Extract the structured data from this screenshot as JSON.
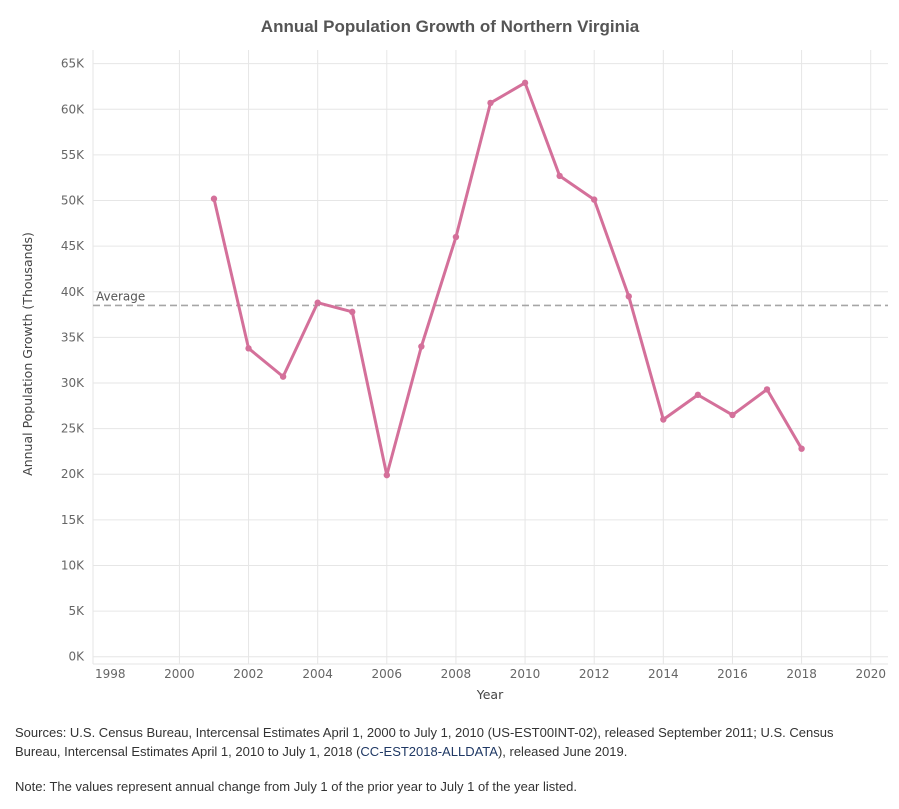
{
  "chart_data": {
    "type": "line",
    "title": "Annual Population Growth of Northern Virginia",
    "xlabel": "Year",
    "ylabel": "Annual Population Growth (Thousands)",
    "xlim": [
      1997.5,
      2020.5
    ],
    "ylim": [
      -0.8,
      66.5
    ],
    "x_ticks": [
      1998,
      2000,
      2002,
      2004,
      2006,
      2008,
      2010,
      2012,
      2014,
      2016,
      2018,
      2020
    ],
    "y_ticks": [
      0,
      5,
      10,
      15,
      20,
      25,
      30,
      35,
      40,
      45,
      50,
      55,
      60,
      65
    ],
    "y_tick_labels": [
      "0K",
      "5K",
      "10K",
      "15K",
      "20K",
      "25K",
      "30K",
      "35K",
      "40K",
      "45K",
      "50K",
      "55K",
      "60K",
      "65K"
    ],
    "grid": true,
    "series": [
      {
        "name": "Annual Population Growth",
        "color": "#d4709a",
        "x": [
          2001,
          2002,
          2003,
          2004,
          2005,
          2006,
          2007,
          2008,
          2009,
          2010,
          2011,
          2012,
          2013,
          2014,
          2015,
          2016,
          2017,
          2018
        ],
        "values": [
          50.2,
          33.8,
          30.7,
          38.8,
          37.8,
          19.9,
          34.0,
          46.0,
          60.7,
          62.9,
          52.7,
          50.1,
          39.5,
          26.0,
          28.7,
          26.5,
          29.3,
          22.8
        ]
      }
    ],
    "reference_line": {
      "label": "Average",
      "value": 38.5,
      "color": "#a6a6a6",
      "style": "dashed"
    }
  },
  "footer": {
    "sources_prefix": "Sources: U.S. Census Bureau, Intercensal Estimates April 1, 2000 to July 1, 2010 (US-EST00INT-02), released September 2011;   U.S. Census Bureau, Intercensal Estimates April 1, 2010 to July 1, 2018 (",
    "sources_link": "CC-EST2018-ALLDATA",
    "sources_suffix": "), released June 2019.",
    "note": "Note: The values represent annual change from July 1 of the prior year to July 1 of the year listed."
  }
}
